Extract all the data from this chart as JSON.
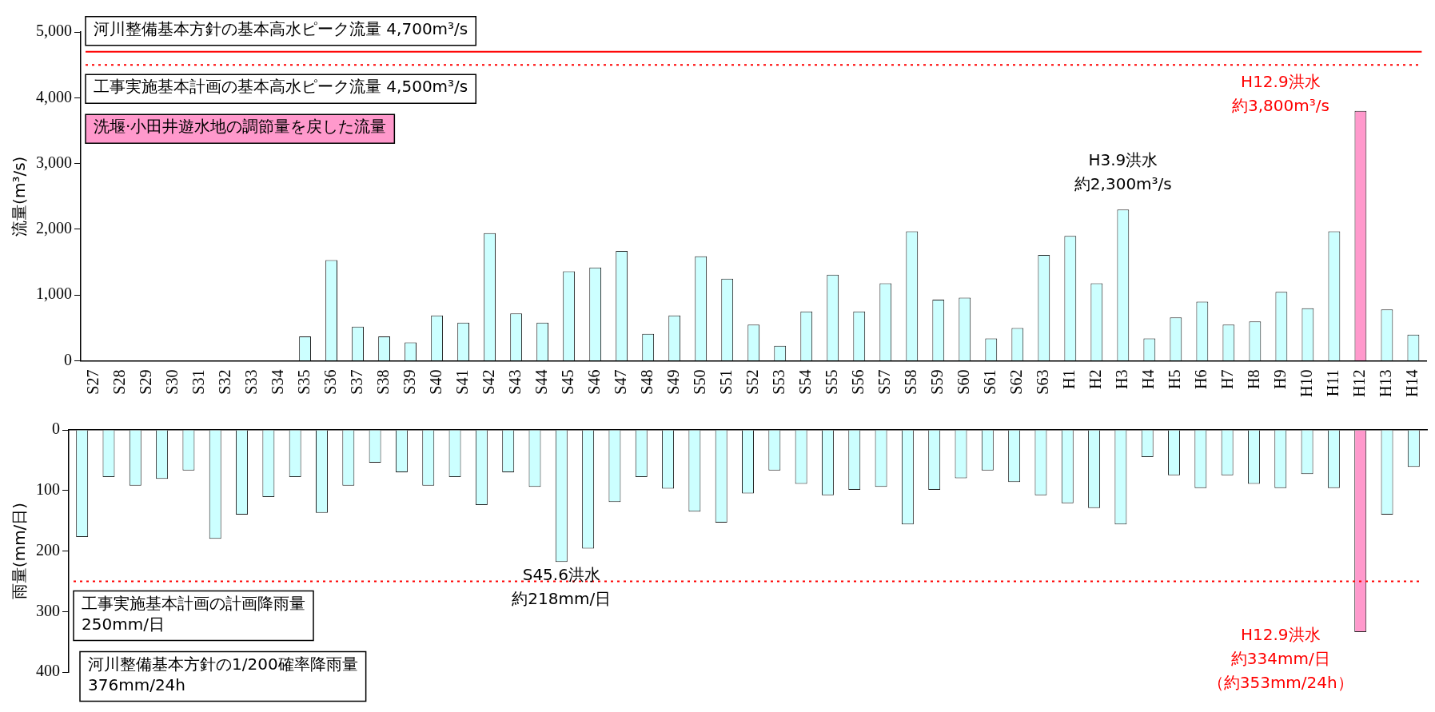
{
  "chart_data": [
    {
      "type": "bar",
      "ylabel": "流量(m³/s)",
      "categories": [
        "S27",
        "S28",
        "S29",
        "S30",
        "S31",
        "S32",
        "S33",
        "S34",
        "S35",
        "S36",
        "S37",
        "S38",
        "S39",
        "S40",
        "S41",
        "S42",
        "S43",
        "S44",
        "S45",
        "S46",
        "S47",
        "S48",
        "S49",
        "S50",
        "S51",
        "S52",
        "S53",
        "S54",
        "S55",
        "S56",
        "S57",
        "S58",
        "S59",
        "S60",
        "S61",
        "S62",
        "S63",
        "H1",
        "H2",
        "H3",
        "H4",
        "H5",
        "H6",
        "H7",
        "H8",
        "H9",
        "H10",
        "H11",
        "H12",
        "H13",
        "H14"
      ],
      "values": [
        null,
        null,
        null,
        null,
        null,
        null,
        null,
        null,
        370,
        1530,
        520,
        370,
        280,
        690,
        580,
        1940,
        720,
        580,
        1360,
        1420,
        1670,
        410,
        690,
        1590,
        1250,
        550,
        230,
        750,
        1310,
        750,
        1180,
        1970,
        930,
        960,
        340,
        500,
        1610,
        1900,
        1180,
        2300,
        340,
        660,
        900,
        550,
        600,
        1050,
        800,
        1970,
        3800,
        780,
        400
      ],
      "colors": [
        "#ccffff",
        "#ccffff",
        "#ccffff",
        "#ccffff",
        "#ccffff",
        "#ccffff",
        "#ccffff",
        "#ccffff",
        "#ccffff",
        "#ccffff",
        "#ccffff",
        "#ccffff",
        "#ccffff",
        "#ccffff",
        "#ccffff",
        "#ccffff",
        "#ccffff",
        "#ccffff",
        "#ccffff",
        "#ccffff",
        "#ccffff",
        "#ccffff",
        "#ccffff",
        "#ccffff",
        "#ccffff",
        "#ccffff",
        "#ccffff",
        "#ccffff",
        "#ccffff",
        "#ccffff",
        "#ccffff",
        "#ccffff",
        "#ccffff",
        "#ccffff",
        "#ccffff",
        "#ccffff",
        "#ccffff",
        "#ccffff",
        "#ccffff",
        "#ccffff",
        "#ccffff",
        "#ccffff",
        "#ccffff",
        "#ccffff",
        "#ccffff",
        "#ccffff",
        "#ccffff",
        "#ccffff",
        "#ff99cc",
        "#ccffff",
        "#ccffff"
      ],
      "ylim": [
        0,
        5000
      ],
      "yticks": [
        {
          "value": 0,
          "label": "0"
        },
        {
          "value": 1000,
          "label": "1,000"
        },
        {
          "value": 2000,
          "label": "2,000"
        },
        {
          "value": 3000,
          "label": "3,000"
        },
        {
          "value": 4000,
          "label": "4,000"
        },
        {
          "value": 5000,
          "label": "5,000"
        }
      ],
      "ref_lines": [
        {
          "axis": "y",
          "value": 4700,
          "label": "河川整備基本方針の基本高水ピーク流量 4,700m³/s",
          "color": "#ff0000",
          "line_style": "solid"
        },
        {
          "axis": "y",
          "value": 4500,
          "label": "工事実施基本計画の基本高水ピーク流量 4,500m³/s",
          "color": "#ff0000",
          "line_style": "dotted"
        }
      ],
      "annotations": [
        "洗堰·小田井遊水地の調節量を戻した流量",
        {
          "text": "H3.9洪水",
          "x": "H3",
          "y": 2300
        },
        {
          "text": "約2,300m³/s",
          "x": "H3",
          "y": 2300
        },
        {
          "text": "H12.9洪水",
          "x": "H12",
          "y": 3800
        },
        {
          "text": "約3,800m³/s",
          "x": "H12",
          "y": 3800
        }
      ],
      "grid": false,
      "legend": false
    },
    {
      "type": "bar",
      "ylabel": "雨量(mm/日)",
      "categories": [
        "S27",
        "S28",
        "S29",
        "S30",
        "S31",
        "S32",
        "S33",
        "S34",
        "S35",
        "S36",
        "S37",
        "S38",
        "S39",
        "S40",
        "S41",
        "S42",
        "S43",
        "S44",
        "S45",
        "S46",
        "S47",
        "S48",
        "S49",
        "S50",
        "S51",
        "S52",
        "S53",
        "S54",
        "S55",
        "S56",
        "S57",
        "S58",
        "S59",
        "S60",
        "S61",
        "S62",
        "S63",
        "H1",
        "H2",
        "H3",
        "H4",
        "H5",
        "H6",
        "H7",
        "H8",
        "H9",
        "H10",
        "H11",
        "H12",
        "H13",
        "H14"
      ],
      "values": [
        177,
        78,
        92,
        81,
        67,
        180,
        140,
        111,
        78,
        137,
        92,
        54,
        70,
        92,
        78,
        124,
        70,
        94,
        218,
        196,
        119,
        78,
        97,
        135,
        153,
        105,
        67,
        89,
        108,
        99,
        94,
        156,
        99,
        80,
        67,
        86,
        108,
        121,
        129,
        156,
        45,
        75,
        96,
        75,
        89,
        96,
        73,
        96,
        334,
        140,
        61
      ],
      "colors": [
        "#ccffff",
        "#ccffff",
        "#ccffff",
        "#ccffff",
        "#ccffff",
        "#ccffff",
        "#ccffff",
        "#ccffff",
        "#ccffff",
        "#ccffff",
        "#ccffff",
        "#ccffff",
        "#ccffff",
        "#ccffff",
        "#ccffff",
        "#ccffff",
        "#ccffff",
        "#ccffff",
        "#ccffff",
        "#ccffff",
        "#ccffff",
        "#ccffff",
        "#ccffff",
        "#ccffff",
        "#ccffff",
        "#ccffff",
        "#ccffff",
        "#ccffff",
        "#ccffff",
        "#ccffff",
        "#ccffff",
        "#ccffff",
        "#ccffff",
        "#ccffff",
        "#ccffff",
        "#ccffff",
        "#ccffff",
        "#ccffff",
        "#ccffff",
        "#ccffff",
        "#ccffff",
        "#ccffff",
        "#ccffff",
        "#ccffff",
        "#ccffff",
        "#ccffff",
        "#ccffff",
        "#ccffff",
        "#ff99cc",
        "#ccffff",
        "#ccffff"
      ],
      "ylim": [
        400,
        0
      ],
      "yticks": [
        0,
        100,
        200,
        300,
        400
      ],
      "tick_labels": "y",
      "ref_lines": [
        {
          "axis": "y",
          "value": 250,
          "label": "工事実施基本計画の計画降雨量\n250mm/日",
          "color": "#ff0000",
          "line_style": "dotted"
        }
      ],
      "annotations": [
        "河川整備基本方針の1/200確率降雨量\n376mm/24h",
        {
          "text": "S45.6洪水",
          "x": "S45",
          "y": 218
        },
        {
          "text": "約218mm/日",
          "x": "S45",
          "y": 218
        },
        {
          "text": "H12.9洪水",
          "x": "H12",
          "y": 334
        },
        {
          "text": "約334mm/日",
          "x": "H12",
          "y": 334
        },
        {
          "text": "（約353mm/24h）",
          "x": "H12",
          "y": 334
        }
      ],
      "grid": false,
      "legend": false
    }
  ]
}
